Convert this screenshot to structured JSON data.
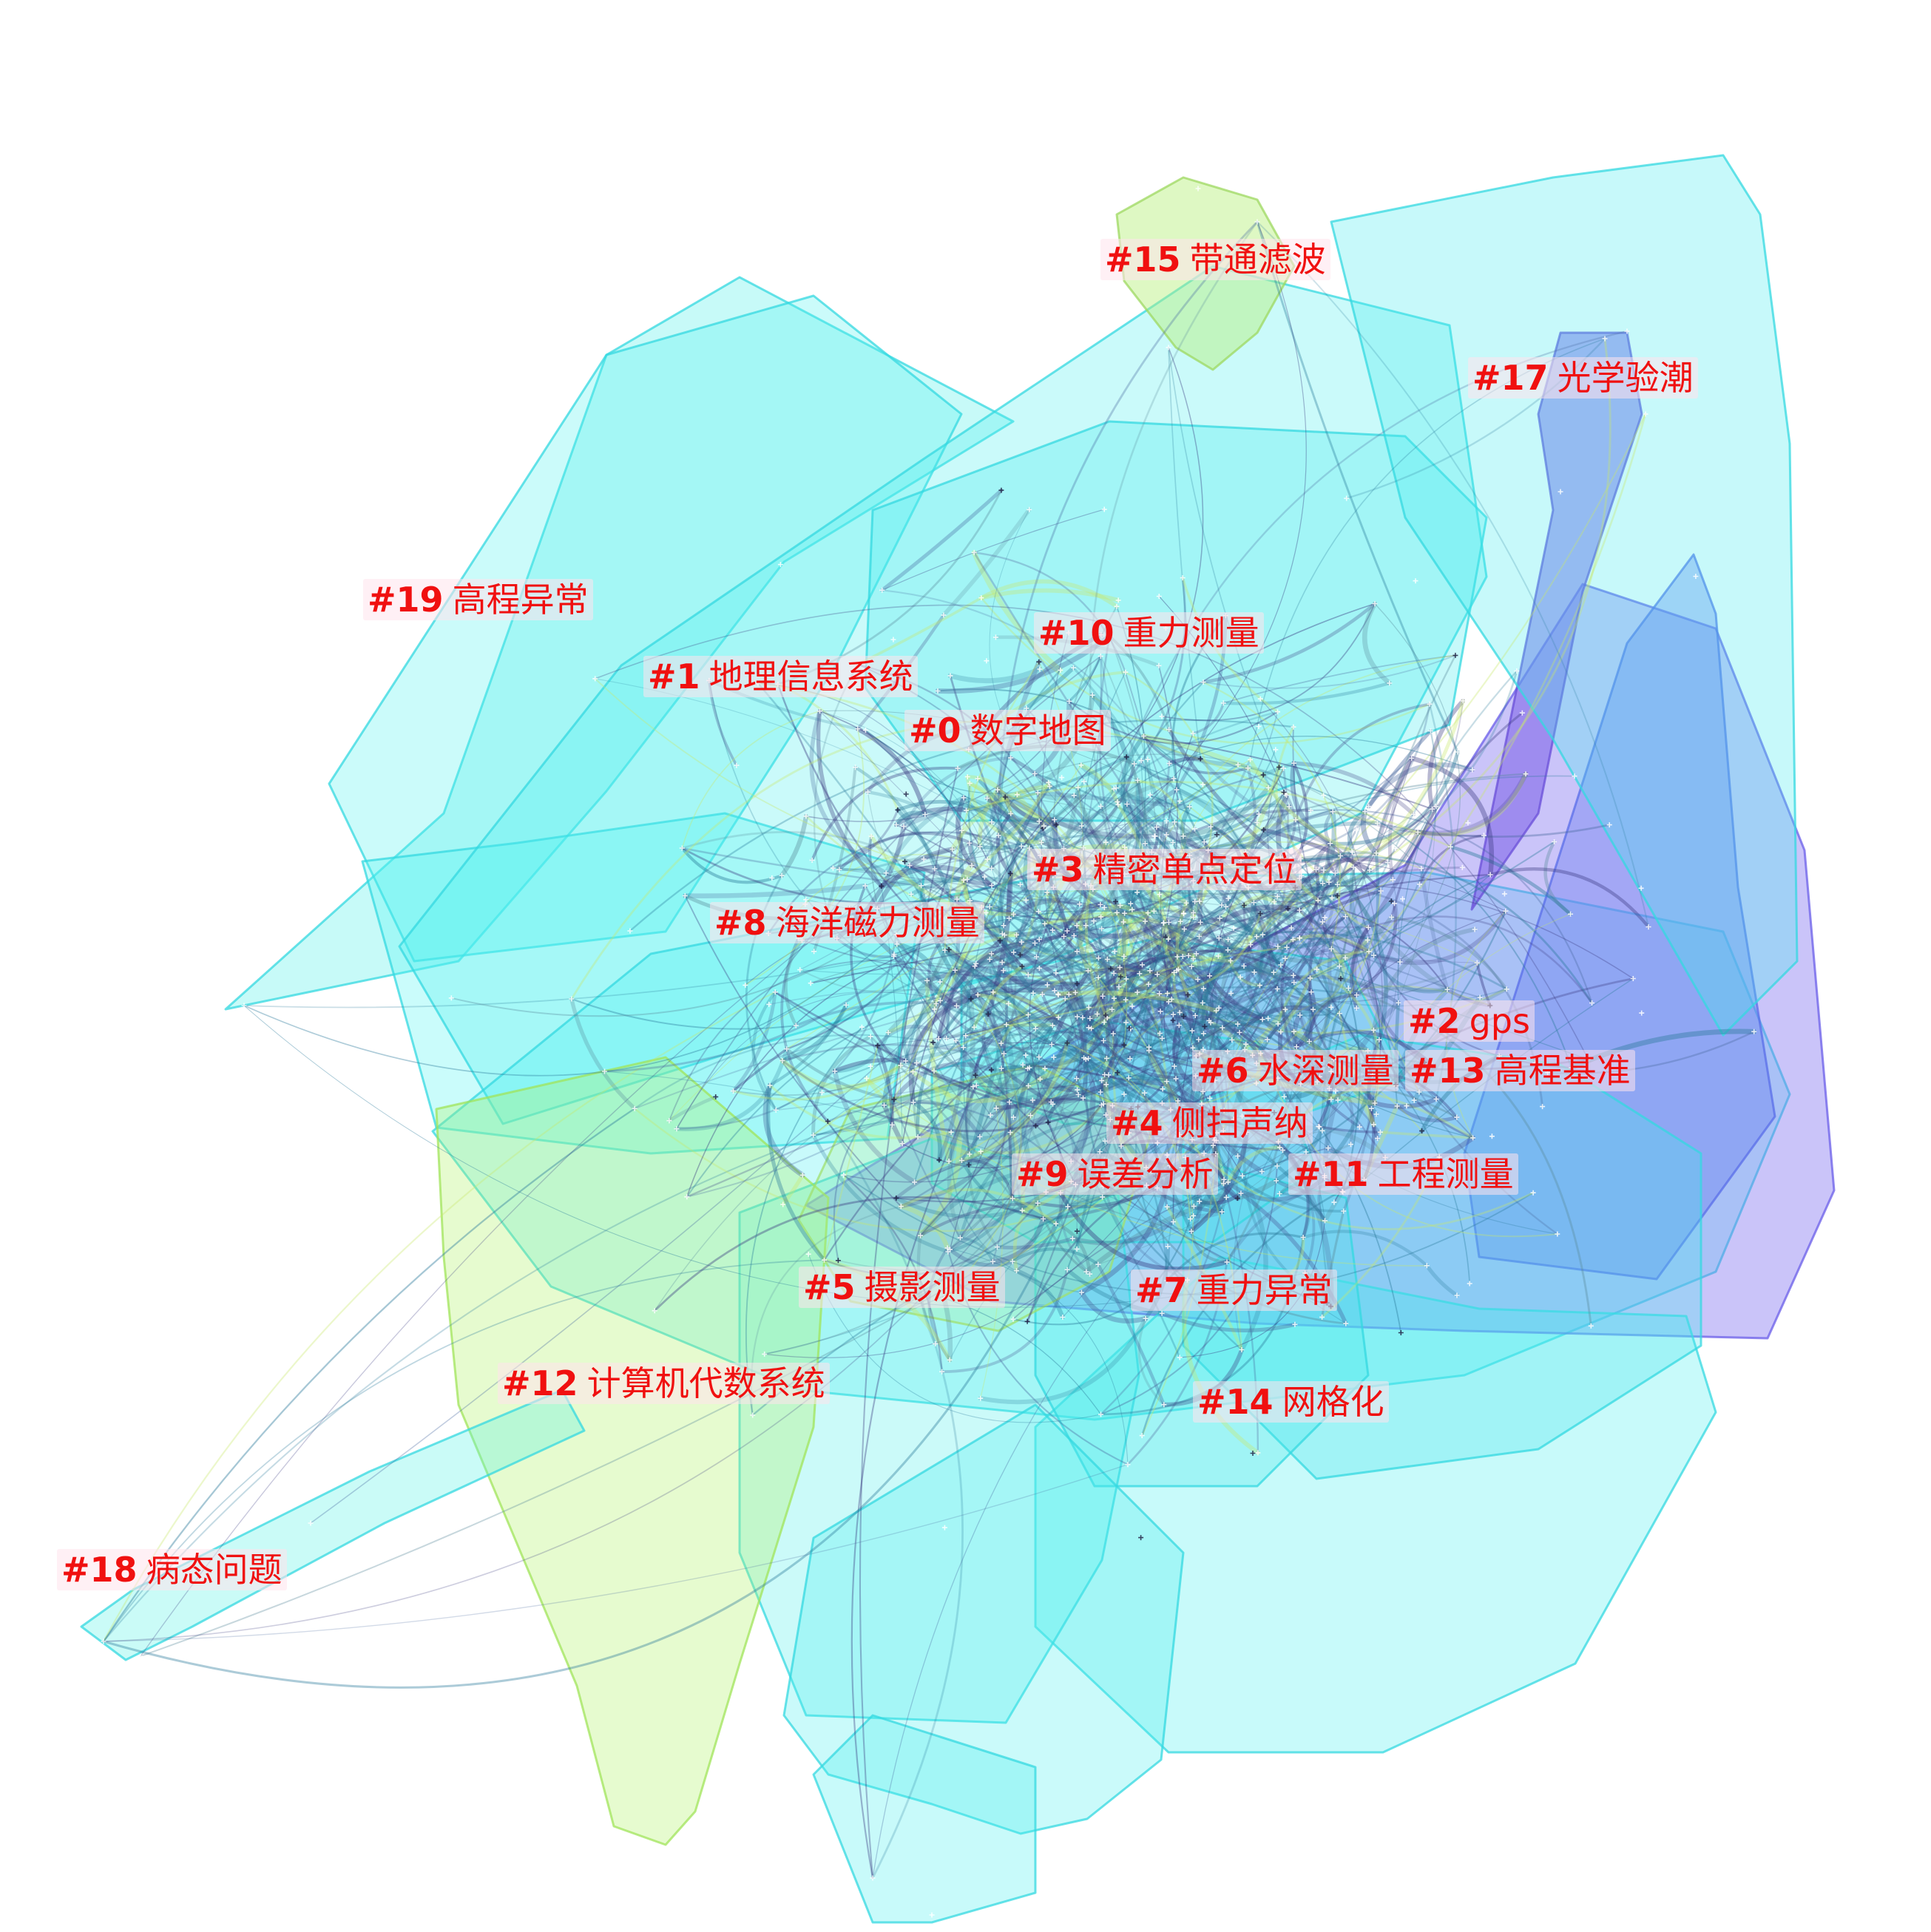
{
  "clusters": [
    {
      "id": "#0",
      "name": "数字地图",
      "color": "#4ef0f0"
    },
    {
      "id": "#1",
      "name": "地理信息系统",
      "color": "#52f2f0"
    },
    {
      "id": "#2",
      "name": "gps",
      "color": "#7b6cf0"
    },
    {
      "id": "#3",
      "name": "精密单点定位",
      "color": "#48eef2"
    },
    {
      "id": "#4",
      "name": "侧扫声纳",
      "color": "#4ae8ee"
    },
    {
      "id": "#5",
      "name": "摄影测量",
      "color": "#54f0ec"
    },
    {
      "id": "#6",
      "name": "水深测量",
      "color": "#4aeef0"
    },
    {
      "id": "#7",
      "name": "重力异常",
      "color": "#44e8ec"
    },
    {
      "id": "#8",
      "name": "海洋磁力测量",
      "color": "#50f4f2"
    },
    {
      "id": "#9",
      "name": "误差分析",
      "color": "#a8f090"
    },
    {
      "id": "#10",
      "name": "重力测量",
      "color": "#46eaf0"
    },
    {
      "id": "#11",
      "name": "工程测量",
      "color": "#4ae6f0"
    },
    {
      "id": "#12",
      "name": "计算机代数系统",
      "color": "#b0f26a"
    },
    {
      "id": "#13",
      "name": "高程基准",
      "color": "#6a7ef0"
    },
    {
      "id": "#14",
      "name": "网格化",
      "color": "#4af0f0"
    },
    {
      "id": "#15",
      "name": "带通滤波",
      "color": "#b6f07a"
    },
    {
      "id": "#17",
      "name": "光学验潮",
      "color": "#7a5ee8"
    },
    {
      "id": "#18",
      "name": "病态问题",
      "color": "#4ef2e6"
    },
    {
      "id": "#19",
      "name": "高程异常",
      "color": "#46f0e8"
    }
  ],
  "colors": {
    "label_text": "#f01010",
    "label_background": "#ffe4ec",
    "edge_dark": "#3a3a80",
    "edge_mid": "#2a7a9a",
    "edge_light": "#c8e86a",
    "node": "#ffffff"
  }
}
